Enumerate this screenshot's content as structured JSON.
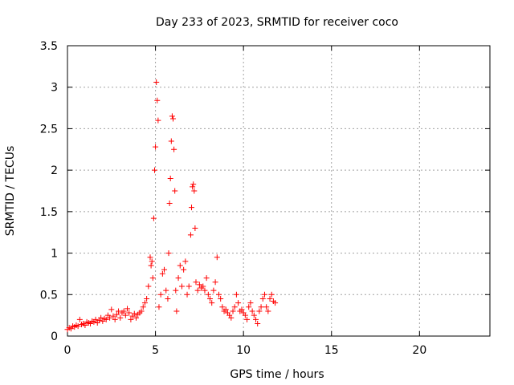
{
  "chart_data": {
    "type": "scatter",
    "title": "Day 233 of 2023, SRMTID for receiver coco",
    "xlabel": "GPS time / hours",
    "ylabel": "SRMTID / TECUs",
    "xlim": [
      0,
      24
    ],
    "ylim": [
      0,
      3.5
    ],
    "xticks": [
      0,
      5,
      10,
      15,
      20
    ],
    "xtick_labels": [
      "0",
      "5",
      "10",
      "15",
      "20"
    ],
    "yticks": [
      0,
      0.5,
      1,
      1.5,
      2,
      2.5,
      3,
      3.5
    ],
    "ytick_labels": [
      "0",
      "0.5",
      "1",
      "1.5",
      "2",
      "2.5",
      "3",
      "3.5"
    ],
    "grid": true,
    "marker": "+",
    "series": [
      {
        "name": "SRMTID",
        "color": "#ff0000",
        "x": [
          0.0,
          0.1,
          0.2,
          0.3,
          0.4,
          0.5,
          0.6,
          0.7,
          0.8,
          0.9,
          1.0,
          1.1,
          1.2,
          1.3,
          1.4,
          1.5,
          1.6,
          1.7,
          1.8,
          1.9,
          2.0,
          2.1,
          2.2,
          2.3,
          2.4,
          2.5,
          2.6,
          2.7,
          2.8,
          2.9,
          3.0,
          3.1,
          3.2,
          3.3,
          3.4,
          3.5,
          3.6,
          3.7,
          3.8,
          3.9,
          4.0,
          4.1,
          4.2,
          4.3,
          4.4,
          4.5,
          4.6,
          4.7,
          4.75,
          4.8,
          4.85,
          4.9,
          4.95,
          5.0,
          5.05,
          5.1,
          5.15,
          5.2,
          5.3,
          5.4,
          5.5,
          5.6,
          5.7,
          5.75,
          5.8,
          5.85,
          5.9,
          5.95,
          6.0,
          6.05,
          6.1,
          6.15,
          6.2,
          6.3,
          6.4,
          6.5,
          6.6,
          6.7,
          6.8,
          6.9,
          7.0,
          7.05,
          7.1,
          7.15,
          7.2,
          7.25,
          7.3,
          7.4,
          7.5,
          7.6,
          7.7,
          7.8,
          7.9,
          8.0,
          8.1,
          8.2,
          8.3,
          8.4,
          8.5,
          8.6,
          8.7,
          8.8,
          8.9,
          9.0,
          9.1,
          9.2,
          9.3,
          9.4,
          9.5,
          9.6,
          9.7,
          9.8,
          9.9,
          10.0,
          10.1,
          10.2,
          10.3,
          10.4,
          10.5,
          10.6,
          10.7,
          10.8,
          10.9,
          11.0,
          11.1,
          11.2,
          11.3,
          11.4,
          11.5,
          11.6,
          11.7,
          11.8
        ],
        "y": [
          0.08,
          0.1,
          0.09,
          0.12,
          0.11,
          0.13,
          0.12,
          0.2,
          0.14,
          0.15,
          0.13,
          0.17,
          0.16,
          0.15,
          0.18,
          0.17,
          0.2,
          0.16,
          0.19,
          0.22,
          0.18,
          0.21,
          0.2,
          0.25,
          0.22,
          0.32,
          0.24,
          0.2,
          0.26,
          0.3,
          0.22,
          0.28,
          0.3,
          0.25,
          0.33,
          0.28,
          0.2,
          0.24,
          0.27,
          0.22,
          0.26,
          0.28,
          0.3,
          0.35,
          0.4,
          0.45,
          0.6,
          0.95,
          0.85,
          0.9,
          0.7,
          1.42,
          2.0,
          2.28,
          3.06,
          2.84,
          2.6,
          0.35,
          0.5,
          0.75,
          0.8,
          0.55,
          0.45,
          1.0,
          1.6,
          1.9,
          2.35,
          2.65,
          2.62,
          2.25,
          1.75,
          0.55,
          0.3,
          0.7,
          0.85,
          0.6,
          0.8,
          0.9,
          0.5,
          0.6,
          1.22,
          1.55,
          1.8,
          1.83,
          1.75,
          1.3,
          0.65,
          0.55,
          0.62,
          0.58,
          0.6,
          0.55,
          0.7,
          0.5,
          0.45,
          0.4,
          0.55,
          0.65,
          0.95,
          0.5,
          0.45,
          0.35,
          0.3,
          0.32,
          0.28,
          0.25,
          0.22,
          0.3,
          0.35,
          0.5,
          0.4,
          0.3,
          0.32,
          0.28,
          0.25,
          0.2,
          0.35,
          0.4,
          0.3,
          0.25,
          0.2,
          0.15,
          0.3,
          0.35,
          0.45,
          0.5,
          0.35,
          0.3,
          0.45,
          0.5,
          0.42,
          0.4
        ]
      }
    ]
  }
}
